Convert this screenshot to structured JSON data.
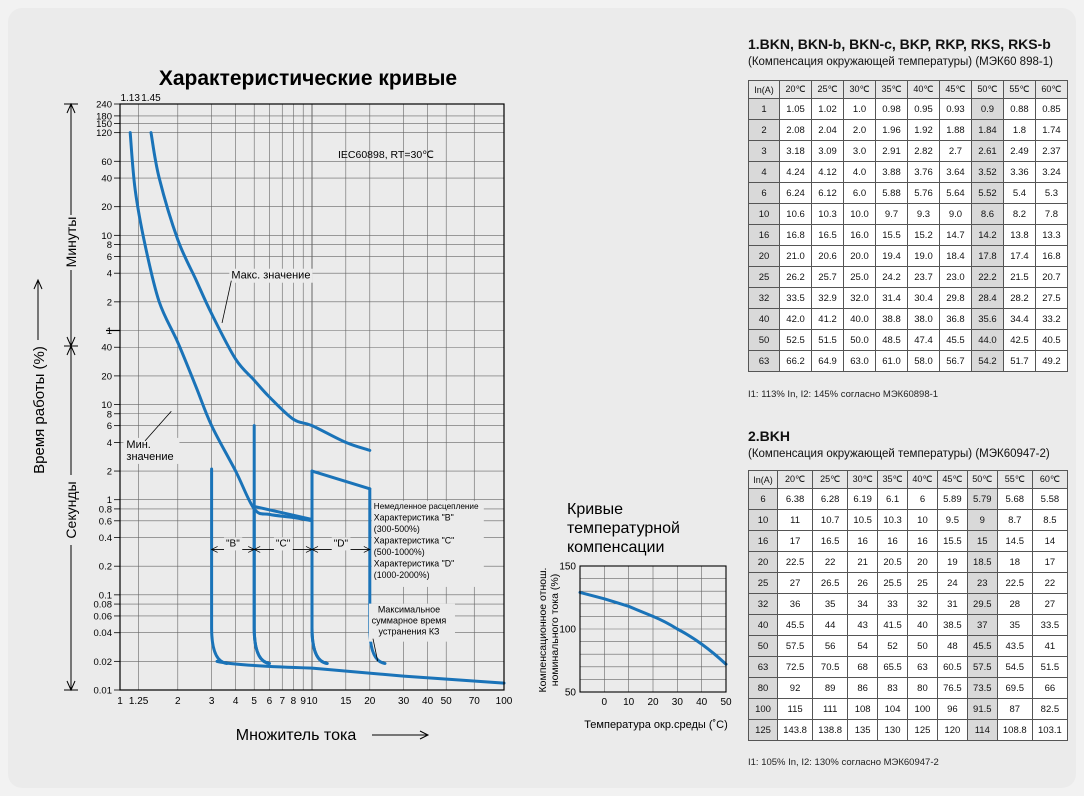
{
  "chart_data": [
    {
      "type": "line",
      "title": "Характеристические кривые",
      "annotation": "IEC60898,  RT=30℃",
      "xlabel": "Множитель тока",
      "ylabel": "Время работы (%)",
      "y_section_minutes": "Минуты",
      "y_section_seconds": "Секунды",
      "x_scale": "log",
      "y_scale": "log",
      "xlim": [
        1,
        100
      ],
      "x_ticks": [
        "1",
        "1.25",
        "2",
        "3",
        "4",
        "5",
        "6",
        "7",
        "8",
        "9",
        "10",
        "15",
        "20",
        "30",
        "40",
        "50",
        "70",
        "100"
      ],
      "y_ticks_minutes": [
        "240",
        "180",
        "150",
        "120",
        "60",
        "40",
        "20",
        "10",
        "8",
        "6",
        "4",
        "2",
        "1"
      ],
      "y_ticks_seconds": [
        "40",
        "20",
        "10",
        "8",
        "6",
        "4",
        "2",
        "1",
        "0.8",
        "0.6",
        "0.4",
        "0.2",
        "0.1",
        "0.08",
        "0.06",
        "0.04",
        "0.02",
        "0.01"
      ],
      "top_labels": [
        "1.13",
        "1.45"
      ],
      "series": [
        {
          "name": "Мин. значение",
          "points": [
            [
              1.13,
              7200
            ],
            [
              1.2,
              1800
            ],
            [
              1.35,
              480
            ],
            [
              1.6,
              120
            ],
            [
              2,
              45
            ],
            [
              2.5,
              15
            ],
            [
              3,
              6
            ],
            [
              4,
              2
            ],
            [
              5,
              0.8
            ],
            [
              6,
              0.7
            ],
            [
              8,
              0.65
            ],
            [
              10,
              0.6
            ]
          ]
        },
        {
          "name": "Макс. значение",
          "points": [
            [
              1.45,
              7200
            ],
            [
              1.6,
              2400
            ],
            [
              2,
              540
            ],
            [
              2.5,
              200
            ],
            [
              3,
              90
            ],
            [
              4,
              30
            ],
            [
              5,
              18
            ],
            [
              6,
              12
            ],
            [
              8,
              7
            ],
            [
              10,
              6
            ],
            [
              15,
              4
            ],
            [
              20,
              3.3
            ]
          ]
        }
      ],
      "range_labels": [
        "\"B\"",
        "\"C\"",
        "\"D\""
      ],
      "legend_lines": [
        "Немедленное расцепление",
        "Характеристика \"B\"",
        "(300-500%)",
        "Характеристика \"C\"",
        "(500-1000%)",
        "Характеристика \"D\"",
        "(1000-2000%)"
      ],
      "note_lines": [
        "Максимальное",
        "суммарное время",
        "устранения  КЗ"
      ],
      "label_max": "Макс. значение",
      "label_min_1": "Мин.",
      "label_min_2": "значение"
    },
    {
      "type": "line",
      "title_lines": [
        "Кривые",
        "температурной",
        "компенсации"
      ],
      "xlabel": "Температура окр.среды (˚C)",
      "ylabel_lines": [
        "Компенсационное отнош.",
        "номинального тока (%)"
      ],
      "xlim": [
        -10,
        50
      ],
      "ylim": [
        50,
        150
      ],
      "x_ticks": [
        "0",
        "10",
        "20",
        "30",
        "40",
        "50"
      ],
      "y_ticks": [
        "150",
        "100",
        "50"
      ],
      "series": [
        {
          "points": [
            [
              -10,
              129
            ],
            [
              0,
              124
            ],
            [
              10,
              118
            ],
            [
              20,
              110
            ],
            [
              30,
              100
            ],
            [
              40,
              88
            ],
            [
              50,
              72
            ]
          ]
        }
      ]
    }
  ],
  "table1": {
    "title": "1.BKN, BKN-b, BKN-c, BKP, RKP, RKS, RKS-b",
    "subtitle": "(Компенсация окружающей температуры) (МЭК60 898-1)",
    "headers": [
      "In(A)",
      "20℃",
      "25℃",
      "30℃",
      "35℃",
      "40℃",
      "45℃",
      "50℃",
      "55℃",
      "60℃"
    ],
    "shaded_col": 7,
    "rows": [
      [
        "1",
        "1.05",
        "1.02",
        "1.0",
        "0.98",
        "0.95",
        "0.93",
        "0.9",
        "0.88",
        "0.85"
      ],
      [
        "2",
        "2.08",
        "2.04",
        "2.0",
        "1.96",
        "1.92",
        "1.88",
        "1.84",
        "1.8",
        "1.74"
      ],
      [
        "3",
        "3.18",
        "3.09",
        "3.0",
        "2.91",
        "2.82",
        "2.7",
        "2.61",
        "2.49",
        "2.37"
      ],
      [
        "4",
        "4.24",
        "4.12",
        "4.0",
        "3.88",
        "3.76",
        "3.64",
        "3.52",
        "3.36",
        "3.24"
      ],
      [
        "6",
        "6.24",
        "6.12",
        "6.0",
        "5.88",
        "5.76",
        "5.64",
        "5.52",
        "5.4",
        "5.3"
      ],
      [
        "10",
        "10.6",
        "10.3",
        "10.0",
        "9.7",
        "9.3",
        "9.0",
        "8.6",
        "8.2",
        "7.8"
      ],
      [
        "16",
        "16.8",
        "16.5",
        "16.0",
        "15.5",
        "15.2",
        "14.7",
        "14.2",
        "13.8",
        "13.3"
      ],
      [
        "20",
        "21.0",
        "20.6",
        "20.0",
        "19.4",
        "19.0",
        "18.4",
        "17.8",
        "17.4",
        "16.8"
      ],
      [
        "25",
        "26.2",
        "25.7",
        "25.0",
        "24.2",
        "23.7",
        "23.0",
        "22.2",
        "21.5",
        "20.7"
      ],
      [
        "32",
        "33.5",
        "32.9",
        "32.0",
        "31.4",
        "30.4",
        "29.8",
        "28.4",
        "28.2",
        "27.5"
      ],
      [
        "40",
        "42.0",
        "41.2",
        "40.0",
        "38.8",
        "38.0",
        "36.8",
        "35.6",
        "34.4",
        "33.2"
      ],
      [
        "50",
        "52.5",
        "51.5",
        "50.0",
        "48.5",
        "47.4",
        "45.5",
        "44.0",
        "42.5",
        "40.5"
      ],
      [
        "63",
        "66.2",
        "64.9",
        "63.0",
        "61.0",
        "58.0",
        "56.7",
        "54.2",
        "51.7",
        "49.2"
      ]
    ],
    "note": "I1: 113% In, I2: 145% согласно МЭК60898-1"
  },
  "table2": {
    "title": "2.BKH",
    "subtitle": "(Компенсация окружающей температуры) (МЭК60947-2)",
    "headers": [
      "In(A)",
      "20℃",
      "25℃",
      "30℃",
      "35℃",
      "40℃",
      "45℃",
      "50℃",
      "55℃",
      "60℃"
    ],
    "shaded_col": 7,
    "rows": [
      [
        "6",
        "6.38",
        "6.28",
        "6.19",
        "6.1",
        "6",
        "5.89",
        "5.79",
        "5.68",
        "5.58"
      ],
      [
        "10",
        "11",
        "10.7",
        "10.5",
        "10.3",
        "10",
        "9.5",
        "9",
        "8.7",
        "8.5"
      ],
      [
        "16",
        "17",
        "16.5",
        "16",
        "16",
        "16",
        "15.5",
        "15",
        "14.5",
        "14"
      ],
      [
        "20",
        "22.5",
        "22",
        "21",
        "20.5",
        "20",
        "19",
        "18.5",
        "18",
        "17"
      ],
      [
        "25",
        "27",
        "26.5",
        "26",
        "25.5",
        "25",
        "24",
        "23",
        "22.5",
        "22"
      ],
      [
        "32",
        "36",
        "35",
        "34",
        "33",
        "32",
        "31",
        "29.5",
        "28",
        "27"
      ],
      [
        "40",
        "45.5",
        "44",
        "43",
        "41.5",
        "40",
        "38.5",
        "37",
        "35",
        "33.5"
      ],
      [
        "50",
        "57.5",
        "56",
        "54",
        "52",
        "50",
        "48",
        "45.5",
        "43.5",
        "41"
      ],
      [
        "63",
        "72.5",
        "70.5",
        "68",
        "65.5",
        "63",
        "60.5",
        "57.5",
        "54.5",
        "51.5"
      ],
      [
        "80",
        "92",
        "89",
        "86",
        "83",
        "80",
        "76.5",
        "73.5",
        "69.5",
        "66"
      ],
      [
        "100",
        "115",
        "111",
        "108",
        "104",
        "100",
        "96",
        "91.5",
        "87",
        "82.5"
      ],
      [
        "125",
        "143.8",
        "138.8",
        "135",
        "130",
        "125",
        "120",
        "114",
        "108.8",
        "103.1"
      ]
    ],
    "note": "I1: 105% In, I2: 130% согласно МЭК60947-2"
  },
  "colors": {
    "curve": "#1a73b8",
    "grid": "#666666",
    "axis": "#000000"
  }
}
